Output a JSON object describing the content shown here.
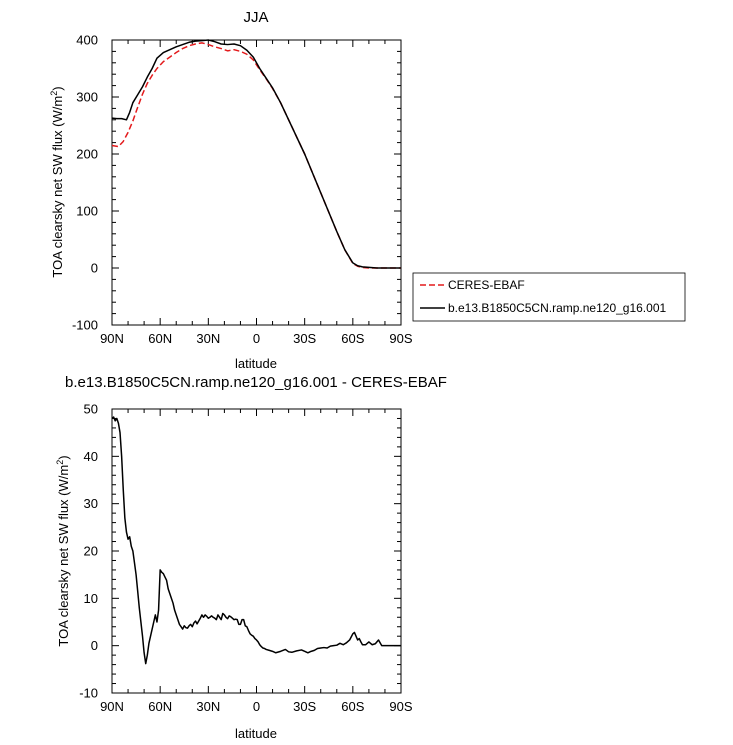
{
  "chart_data": [
    {
      "type": "line",
      "title": "JJA",
      "xlabel": "latitude",
      "ylabel": "TOA clearsky net SW flux (W/m",
      "ylabel_sup": "2",
      "ylabel_end": ")",
      "xlim": [
        90,
        -90
      ],
      "ylim": [
        -100,
        400
      ],
      "xticks": [
        90,
        60,
        30,
        0,
        -30,
        -60,
        -90
      ],
      "xtick_labels": [
        "90N",
        "60N",
        "30N",
        "0",
        "30S",
        "60S",
        "90S"
      ],
      "yticks": [
        -100,
        0,
        100,
        200,
        300,
        400
      ],
      "ytick_labels": [
        "-100",
        "0",
        "100",
        "200",
        "300",
        "400"
      ],
      "legend_position": "right",
      "series": [
        {
          "name": "CERES-EBAF",
          "color": "#e31a1c",
          "dash": "dashed",
          "x": [
            90,
            86,
            83,
            80,
            77,
            74,
            71,
            68,
            65,
            62,
            58,
            54,
            50,
            46,
            42,
            38,
            34,
            30,
            26,
            22,
            18,
            14,
            10,
            6,
            2,
            -2,
            -6,
            -10,
            -15,
            -20,
            -25,
            -30,
            -35,
            -40,
            -45,
            -50,
            -55,
            -60,
            -63,
            -66,
            -70,
            -75,
            -80,
            -85,
            -90
          ],
          "y": [
            215,
            213,
            222,
            238,
            258,
            282,
            305,
            324,
            338,
            350,
            362,
            370,
            378,
            385,
            390,
            393,
            395,
            392,
            388,
            385,
            381,
            383,
            380,
            375,
            365,
            348,
            332,
            315,
            290,
            260,
            230,
            200,
            166,
            132,
            98,
            64,
            32,
            8,
            3,
            1,
            0,
            0,
            0,
            0,
            0
          ]
        },
        {
          "name": "b.e13.B1850C5CN.ramp.ne120_g16.001",
          "color": "#000000",
          "dash": "solid",
          "x": [
            90,
            87,
            84,
            81,
            79,
            77,
            74,
            71,
            68,
            65,
            62,
            58,
            54,
            50,
            46,
            42,
            38,
            34,
            30,
            26,
            22,
            18,
            14,
            10,
            6,
            2,
            -2,
            -6,
            -10,
            -15,
            -20,
            -25,
            -30,
            -35,
            -40,
            -45,
            -50,
            -55,
            -60,
            -63,
            -66,
            -70,
            -75,
            -80,
            -85,
            -90
          ],
          "y": [
            263,
            262,
            262,
            260,
            273,
            290,
            304,
            318,
            335,
            350,
            368,
            378,
            383,
            388,
            392,
            396,
            398,
            399,
            400,
            397,
            393,
            392,
            393,
            390,
            382,
            370,
            350,
            333,
            316,
            290,
            260,
            230,
            200,
            166,
            132,
            98,
            64,
            32,
            9,
            4,
            2,
            1,
            0,
            0,
            0,
            0
          ]
        }
      ]
    },
    {
      "type": "line",
      "title": "b.e13.B1850C5CN.ramp.ne120_g16.001 - CERES-EBAF",
      "xlabel": "latitude",
      "ylabel": "TOA clearsky net SW flux (W/m",
      "ylabel_sup": "2",
      "ylabel_end": ")",
      "xlim": [
        90,
        -90
      ],
      "ylim": [
        -10,
        50
      ],
      "xticks": [
        90,
        60,
        30,
        0,
        -30,
        -60,
        -90
      ],
      "xtick_labels": [
        "90N",
        "60N",
        "30N",
        "0",
        "30S",
        "60S",
        "90S"
      ],
      "yticks": [
        -10,
        0,
        10,
        20,
        30,
        40,
        50
      ],
      "ytick_labels": [
        "-10",
        "0",
        "10",
        "20",
        "30",
        "40",
        "50"
      ],
      "series": [
        {
          "color": "#000000",
          "dash": "solid",
          "x": [
            90,
            89,
            88,
            87,
            86,
            85,
            84,
            83,
            82,
            81,
            80,
            79,
            78,
            77,
            76,
            75,
            74,
            73,
            72,
            71,
            70,
            69,
            68,
            67,
            66,
            65,
            64,
            63,
            62,
            61,
            60,
            59,
            58,
            57,
            56,
            55,
            54,
            53,
            52,
            51,
            50,
            49,
            48,
            47,
            46,
            45,
            44,
            43,
            42,
            41,
            40,
            39,
            38,
            37,
            36,
            35,
            34,
            33,
            32,
            31,
            30,
            29,
            28,
            27,
            26,
            25,
            24,
            23,
            22,
            21,
            20,
            19,
            18,
            17,
            16,
            15,
            14,
            13,
            12,
            11,
            10,
            9,
            8,
            7,
            6,
            5,
            4,
            3,
            2,
            1,
            0,
            -1,
            -2,
            -3,
            -4,
            -5,
            -6,
            -8,
            -10,
            -12,
            -15,
            -18,
            -20,
            -22,
            -25,
            -28,
            -30,
            -32,
            -34,
            -36,
            -38,
            -40,
            -42,
            -44,
            -46,
            -48,
            -50,
            -52,
            -54,
            -56,
            -58,
            -60,
            -61,
            -62,
            -63,
            -64,
            -65,
            -66,
            -68,
            -70,
            -72,
            -74,
            -76,
            -78,
            -80,
            -82,
            -84,
            -86,
            -88,
            -90
          ],
          "y": [
            48,
            48.3,
            47.5,
            48,
            47,
            45,
            40,
            33,
            27,
            24,
            22.5,
            23,
            21,
            20,
            17.5,
            15,
            11.5,
            8,
            5,
            2,
            -1.5,
            -3.8,
            -2,
            0.5,
            2,
            3.5,
            5,
            6.5,
            5,
            7.5,
            16,
            15.5,
            15.2,
            14.5,
            13.8,
            12,
            11,
            10,
            9,
            7.5,
            6.5,
            5.5,
            4.5,
            4,
            3.5,
            4.2,
            3.8,
            3.7,
            4.2,
            4.5,
            4,
            4.8,
            5.2,
            4.6,
            5.2,
            5.8,
            6.5,
            6,
            6.5,
            6.2,
            5.8,
            6,
            6.3,
            6,
            5.8,
            5.5,
            6.5,
            6,
            5.5,
            6.8,
            6.5,
            6,
            5.7,
            6.3,
            6.1,
            5.8,
            5.5,
            5.6,
            5.5,
            4.5,
            4.5,
            5.5,
            5.5,
            4.2,
            4,
            3.2,
            2.5,
            2.2,
            2,
            1.5,
            1.2,
            0.8,
            0.2,
            -0.2,
            -0.5,
            -0.6,
            -0.8,
            -1,
            -1.2,
            -1.5,
            -1.2,
            -0.8,
            -1.3,
            -1.4,
            -1.1,
            -0.9,
            -1.2,
            -1.5,
            -1.2,
            -1,
            -0.6,
            -0.5,
            -0.4,
            -0.5,
            -0.1,
            0,
            0.1,
            0.5,
            0.2,
            0.6,
            1.2,
            2.5,
            2.8,
            2,
            1.2,
            1.5,
            0.8,
            0.2,
            0.2,
            0.8,
            0.2,
            0.4,
            1.2,
            0,
            0,
            0,
            0,
            0,
            0,
            0
          ]
        }
      ]
    }
  ]
}
